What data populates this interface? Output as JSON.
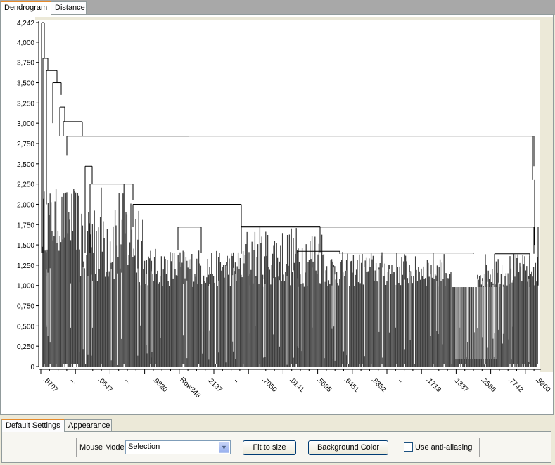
{
  "tabs": {
    "dendrogram": "Dendrogram",
    "distance": "Distance"
  },
  "bottom_tabs": {
    "default_settings": "Default Settings",
    "appearance": "Appearance"
  },
  "settings": {
    "mouse_mode_label": "Mouse Mode",
    "mouse_mode_value": "Selection",
    "fit_button": "Fit to size",
    "background_button": "Background Color",
    "antialias_label": "Use anti-aliasing",
    "antialias_checked": false
  },
  "chart_data": {
    "type": "dendrogram",
    "title": "",
    "xlabel": "",
    "ylabel": "",
    "ylim": [
      0,
      4242
    ],
    "y_ticks": [
      {
        "value": 0,
        "label": "0"
      },
      {
        "value": 250,
        "label": "0,250"
      },
      {
        "value": 500,
        "label": "0,500"
      },
      {
        "value": 750,
        "label": "0,750"
      },
      {
        "value": 1000,
        "label": "1,000"
      },
      {
        "value": 1250,
        "label": "1,250"
      },
      {
        "value": 1500,
        "label": "1,500"
      },
      {
        "value": 1750,
        "label": "1,750"
      },
      {
        "value": 2000,
        "label": "2,000"
      },
      {
        "value": 2250,
        "label": "2,250"
      },
      {
        "value": 2500,
        "label": "2,500"
      },
      {
        "value": 2750,
        "label": "2,750"
      },
      {
        "value": 3000,
        "label": "3,000"
      },
      {
        "value": 3250,
        "label": "3,250"
      },
      {
        "value": 3500,
        "label": "3,500"
      },
      {
        "value": 3750,
        "label": "3,750"
      },
      {
        "value": 4000,
        "label": "4,000"
      },
      {
        "value": 4242,
        "label": "4,242"
      }
    ],
    "x_tick_labels": [
      ".5707",
      "...",
      ".0647",
      "...",
      ".9820",
      "Row348",
      ".2137",
      "...",
      ".7050",
      ".0141",
      ".5695",
      ".6451",
      ".8852",
      "...",
      ".1713",
      ".1337",
      ".2566",
      ".7742",
      ".9200"
    ],
    "grid": false,
    "merge_heights": [
      4242,
      3800,
      3650,
      3500,
      3350,
      3200,
      3020,
      2840,
      2600,
      2470,
      2250,
      2050,
      2000,
      1720,
      1730,
      1440,
      1400,
      1420,
      1410,
      1390,
      1000,
      980
    ],
    "colors": {
      "fill": "#3f3f3f",
      "line": "#000000",
      "background": "#ffffff",
      "plot_edge": "#ece9d8"
    }
  }
}
